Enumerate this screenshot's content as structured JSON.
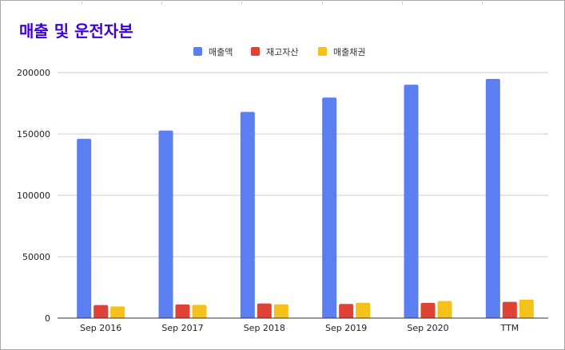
{
  "chart_data": {
    "type": "bar",
    "title": "매출 및 운전자본",
    "title_color": "#3c00d8",
    "categories": [
      "Sep 2016",
      "Sep 2017",
      "Sep 2018",
      "Sep 2019",
      "Sep 2020",
      "TTM"
    ],
    "series": [
      {
        "name": "매출액",
        "color": "#5b7ff0",
        "values": [
          146000,
          152800,
          167900,
          179600,
          190100,
          194800
        ]
      },
      {
        "name": "재고자산",
        "color": "#e04336",
        "values": [
          10600,
          11100,
          11900,
          11500,
          12400,
          13200
        ]
      },
      {
        "name": "매출채권",
        "color": "#f4c21b",
        "values": [
          9500,
          10800,
          11200,
          12500,
          13900,
          15100
        ]
      }
    ],
    "xlabel": "",
    "ylabel": "",
    "ylim": [
      0,
      200000
    ],
    "yticks": [
      "0",
      "50000",
      "100000",
      "150000",
      "200000"
    ],
    "grid": true,
    "legend_position": "top"
  }
}
